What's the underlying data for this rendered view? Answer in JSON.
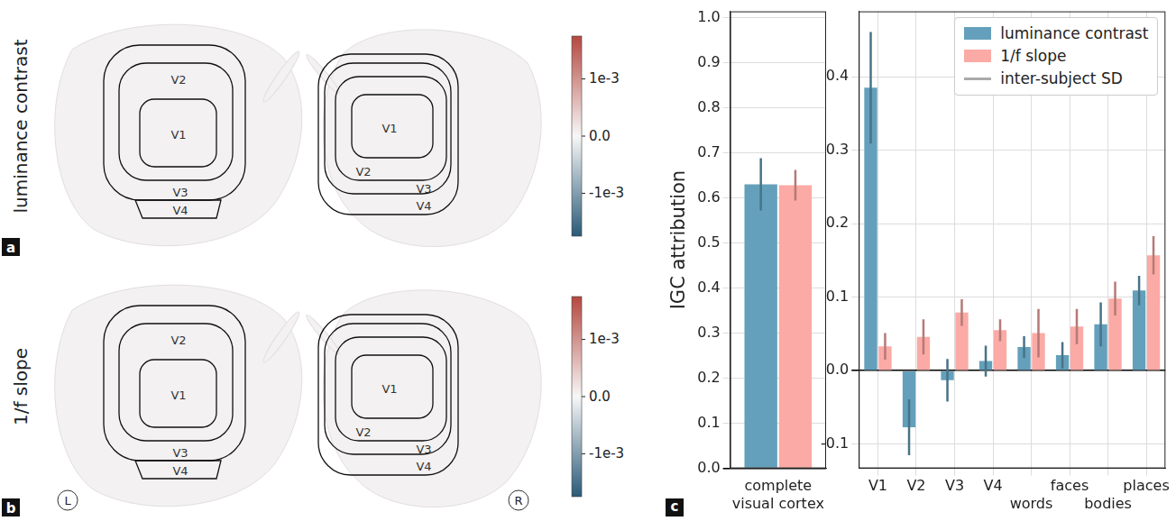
{
  "panel_labels": [
    "a",
    "b",
    "c"
  ],
  "hemisphere_labels": [
    "L",
    "R"
  ],
  "brain_maps": [
    {
      "row_label": "luminance contrast",
      "regions": [
        "V1",
        "V2",
        "V3",
        "V4"
      ],
      "colorbar": {
        "range": [
          -0.00175,
          0.00175
        ],
        "ticks": [
          {
            "value": 0.001,
            "label": "1e-3"
          },
          {
            "value": 0,
            "label": "0.0"
          },
          {
            "value": -0.001,
            "label": "-1e-3"
          }
        ]
      }
    },
    {
      "row_label": "1/f slope",
      "regions": [
        "V1",
        "V2",
        "V3",
        "V4"
      ],
      "colorbar": {
        "range": [
          -0.00175,
          0.00175
        ],
        "ticks": [
          {
            "value": 0.001,
            "label": "1e-3"
          },
          {
            "value": 0,
            "label": "0.0"
          },
          {
            "value": -0.001,
            "label": "-1e-3"
          }
        ]
      }
    }
  ],
  "chart_data": [
    {
      "type": "bar",
      "y_label": "IGC attribution",
      "categories": [
        "complete visual cortex"
      ],
      "series": [
        {
          "name": "luminance contrast",
          "color": "#64a0bb",
          "values": [
            0.63
          ],
          "sd": [
            0.058
          ]
        },
        {
          "name": "1/f slope",
          "color": "#fbaaa5",
          "values": [
            0.628
          ],
          "sd": [
            0.034
          ]
        }
      ],
      "ylim": [
        0,
        1.014
      ],
      "yticks": [
        {
          "value": 0,
          "label": "0.0"
        },
        0.1,
        0.2,
        0.3,
        0.4,
        0.5,
        0.6,
        0.7,
        0.8,
        0.9,
        {
          "value": 1,
          "label": "1.0"
        }
      ],
      "grid": true
    },
    {
      "type": "bar",
      "categories": [
        "V1",
        "V2",
        "V3",
        "V4",
        "words",
        "faces",
        "bodies",
        "places"
      ],
      "series": [
        {
          "name": "luminance contrast",
          "color": "#64a0bb",
          "values": [
            0.385,
            -0.077,
            -0.013,
            0.013,
            0.032,
            0.021,
            0.063,
            0.109
          ],
          "sd": [
            0.076,
            0.038,
            0.029,
            0.021,
            0.015,
            0.018,
            0.03,
            0.02
          ]
        },
        {
          "name": "1/f slope",
          "color": "#fbaaa5",
          "values": [
            0.033,
            0.046,
            0.079,
            0.055,
            0.051,
            0.06,
            0.098,
            0.157
          ],
          "sd": [
            0.018,
            0.024,
            0.018,
            0.015,
            0.033,
            0.024,
            0.023,
            0.026
          ]
        }
      ],
      "ylim": [
        -0.133,
        0.489
      ],
      "yticks": [
        -0.1,
        {
          "value": 0,
          "label": "0.0"
        },
        0.1,
        0.2,
        0.3,
        0.4
      ],
      "grid": true,
      "legend": "upper right",
      "error_bar_name": "inter-subject SD"
    }
  ]
}
